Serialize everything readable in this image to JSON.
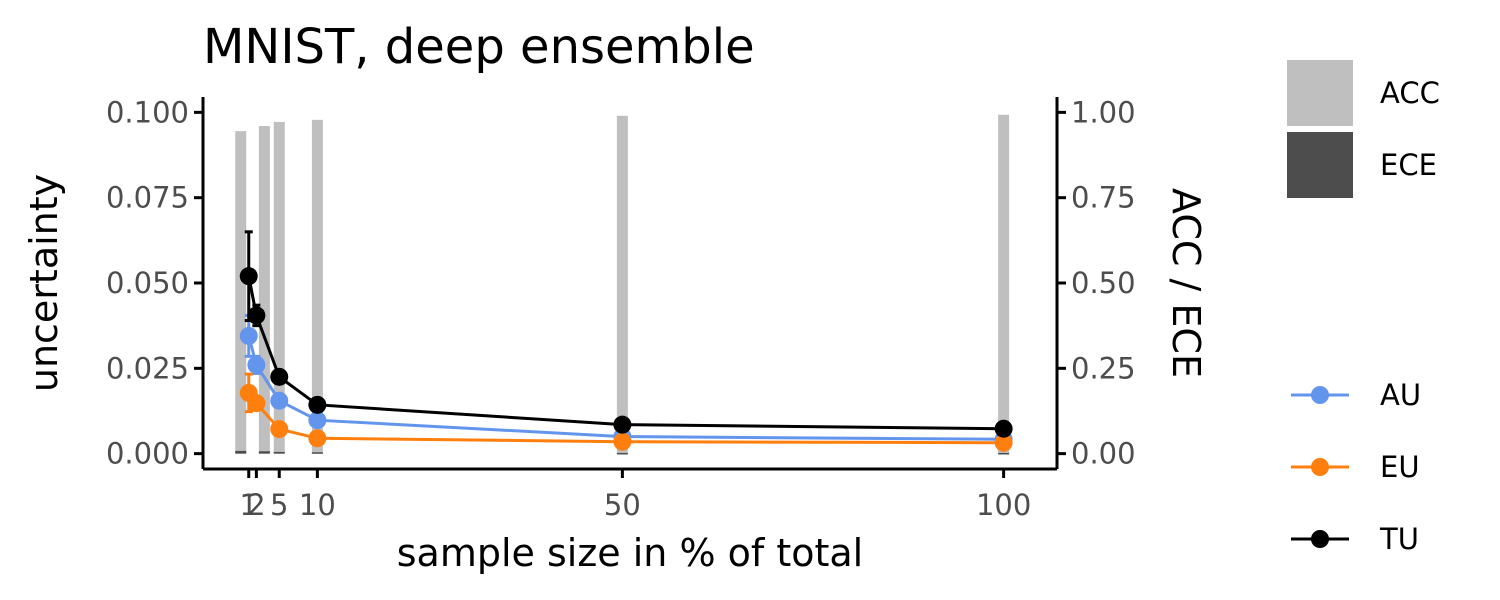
{
  "chart_data": {
    "type": "line",
    "title": "MNIST, deep ensemble",
    "xlabel": "sample size in % of total",
    "ylabel": "uncertainty",
    "y2label": "ACC / ECE",
    "x": [
      1,
      2,
      5,
      10,
      50,
      100
    ],
    "xticks": [
      1,
      2,
      5,
      10,
      50,
      100
    ],
    "xtick_labels": [
      "1",
      "2",
      "5",
      "10",
      "50",
      "100"
    ],
    "xlim": [
      -5,
      107
    ],
    "ylim": [
      -0.0045,
      0.1045
    ],
    "yticks": [
      0.0,
      0.025,
      0.05,
      0.075,
      0.1
    ],
    "ytick_labels": [
      "0.000",
      "0.025",
      "0.050",
      "0.075",
      "0.100"
    ],
    "y2lim": [
      -0.045,
      1.045
    ],
    "y2ticks": [
      0.0,
      0.25,
      0.5,
      0.75,
      1.0
    ],
    "y2tick_labels": [
      "0.00",
      "0.25",
      "0.50",
      "0.75",
      "1.00"
    ],
    "grid": false,
    "bar_series": [
      {
        "name": "ACC",
        "color": "#bfbfbf",
        "values": [
          0.945,
          0.96,
          0.972,
          0.978,
          0.99,
          0.993
        ]
      },
      {
        "name": "ECE",
        "color": "#4d4d4d",
        "values": [
          0.008,
          0.007,
          0.005,
          0.004,
          0.002,
          0.002
        ]
      }
    ],
    "series": [
      {
        "name": "AU",
        "color": "#6495ed",
        "values": [
          0.0345,
          0.026,
          0.0155,
          0.0098,
          0.005,
          0.0042
        ],
        "err": [
          0.006,
          0.0025,
          0.001,
          0.0006,
          0.0003,
          0.0002
        ]
      },
      {
        "name": "EU",
        "color": "#ff7f0e",
        "values": [
          0.0178,
          0.0148,
          0.0072,
          0.0045,
          0.0035,
          0.0032
        ],
        "err": [
          0.0055,
          0.002,
          0.0008,
          0.0004,
          0.0002,
          0.0002
        ]
      },
      {
        "name": "TU",
        "color": "#000000",
        "values": [
          0.052,
          0.0405,
          0.0225,
          0.0143,
          0.0085,
          0.0073
        ],
        "err": [
          0.013,
          0.003,
          0.0012,
          0.0006,
          0.0003,
          0.0002
        ]
      }
    ],
    "legend_position": "right"
  }
}
